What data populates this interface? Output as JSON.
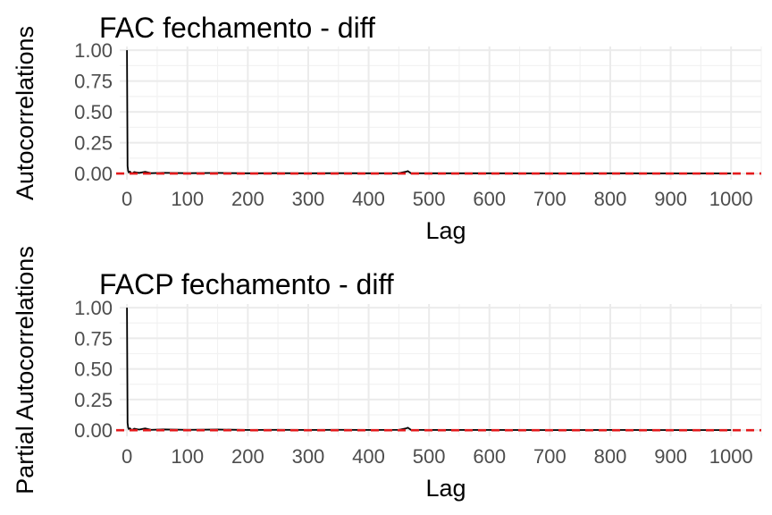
{
  "chart_data": [
    {
      "type": "line",
      "title": "FAC fechamento - diff",
      "xlabel": "Lag",
      "ylabel": "Autocorrelations",
      "xlim": [
        -12,
        1050
      ],
      "ylim": [
        -0.05,
        1.03
      ],
      "x_ticks": [
        0,
        100,
        200,
        300,
        400,
        500,
        600,
        700,
        800,
        900,
        1000
      ],
      "y_ticks": [
        0.0,
        0.25,
        0.5,
        0.75,
        1.0
      ],
      "x_tick_labels": [
        "0",
        "100",
        "200",
        "300",
        "400",
        "500",
        "600",
        "700",
        "800",
        "900",
        "1000"
      ],
      "y_tick_labels": [
        "0.00",
        "0.25",
        "0.50",
        "0.75",
        "1.00"
      ],
      "grid": true,
      "reference_line": {
        "y": 0,
        "style": "dashed",
        "color": "#e31a1c"
      },
      "series": [
        {
          "x": [
            0,
            1,
            2,
            3,
            5,
            8,
            12,
            20,
            30,
            40,
            60,
            100,
            150,
            200,
            250,
            300,
            350,
            400,
            450,
            462,
            465,
            470,
            500,
            600,
            700,
            800,
            900,
            1000
          ],
          "values": [
            1.0,
            0.06,
            0.02,
            0.01,
            0.015,
            0.0,
            0.012,
            0.005,
            0.014,
            0.003,
            0.006,
            0.003,
            0.005,
            0.002,
            0.003,
            0.002,
            0.003,
            0.002,
            0.003,
            0.015,
            0.02,
            0.003,
            0.002,
            0.002,
            0.001,
            0.002,
            0.001,
            0.001
          ]
        }
      ]
    },
    {
      "type": "line",
      "title": "FACP fechamento - diff",
      "xlabel": "Lag",
      "ylabel": "Partial Autocorrelations",
      "xlim": [
        -12,
        1050
      ],
      "ylim": [
        -0.05,
        1.03
      ],
      "x_ticks": [
        0,
        100,
        200,
        300,
        400,
        500,
        600,
        700,
        800,
        900,
        1000
      ],
      "y_ticks": [
        0.0,
        0.25,
        0.5,
        0.75,
        1.0
      ],
      "x_tick_labels": [
        "0",
        "100",
        "200",
        "300",
        "400",
        "500",
        "600",
        "700",
        "800",
        "900",
        "1000"
      ],
      "y_tick_labels": [
        "0.00",
        "0.25",
        "0.50",
        "0.75",
        "1.00"
      ],
      "grid": true,
      "reference_line": {
        "y": 0,
        "style": "dashed",
        "color": "#e31a1c"
      },
      "series": [
        {
          "x": [
            0,
            1,
            2,
            3,
            5,
            8,
            12,
            20,
            30,
            40,
            60,
            100,
            150,
            200,
            250,
            300,
            350,
            400,
            450,
            462,
            465,
            470,
            500,
            600,
            700,
            800,
            900,
            1000
          ],
          "values": [
            1.0,
            0.06,
            0.02,
            0.01,
            0.015,
            0.0,
            0.012,
            0.005,
            0.014,
            0.003,
            0.006,
            0.003,
            0.005,
            0.002,
            0.003,
            0.002,
            0.003,
            0.002,
            0.003,
            0.015,
            0.02,
            0.003,
            0.002,
            0.002,
            0.001,
            0.002,
            0.001,
            0.001
          ]
        }
      ]
    }
  ]
}
